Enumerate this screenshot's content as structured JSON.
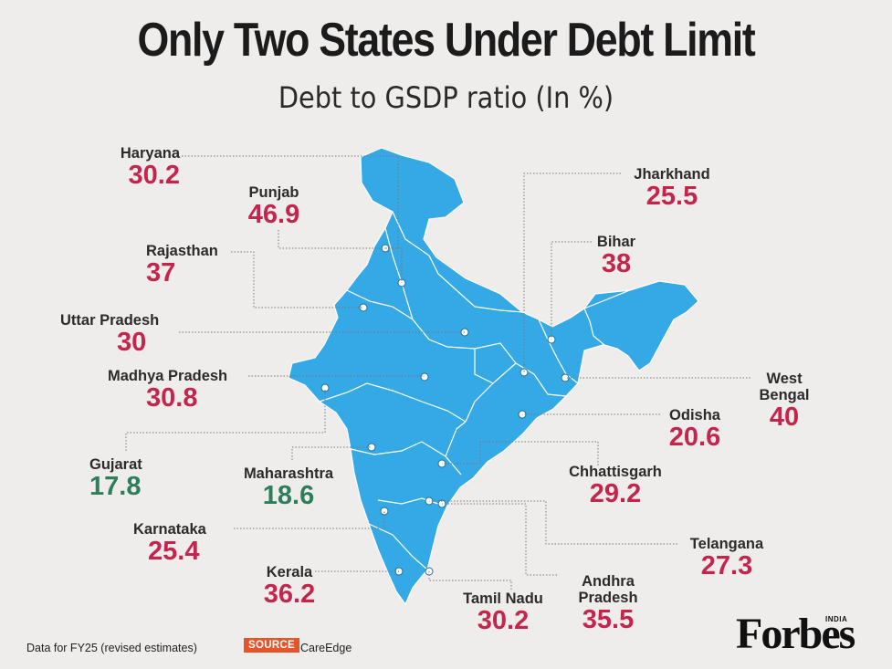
{
  "title": "Only Two States Under Debt Limit",
  "subtitle": "Debt to GSDP ratio (In %)",
  "colors": {
    "over": "#c4254d",
    "under": "#2e7d5b",
    "map_fill": "#35a9e6",
    "background": "#efedec"
  },
  "states": [
    {
      "name": "Haryana",
      "value": "30.2",
      "status": "over"
    },
    {
      "name": "Punjab",
      "value": "46.9",
      "status": "over"
    },
    {
      "name": "Rajasthan",
      "value": "37",
      "status": "over"
    },
    {
      "name": "Uttar Pradesh",
      "value": "30",
      "status": "over"
    },
    {
      "name": "Madhya Pradesh",
      "value": "30.8",
      "status": "over"
    },
    {
      "name": "Gujarat",
      "value": "17.8",
      "status": "under"
    },
    {
      "name": "Maharashtra",
      "value": "18.6",
      "status": "under"
    },
    {
      "name": "Karnataka",
      "value": "25.4",
      "status": "over"
    },
    {
      "name": "Kerala",
      "value": "36.2",
      "status": "over"
    },
    {
      "name": "Tamil Nadu",
      "value": "30.2",
      "status": "over"
    },
    {
      "name_lines": [
        "Andhra",
        "Pradesh"
      ],
      "value": "35.5",
      "status": "over"
    },
    {
      "name": "Telangana",
      "value": "27.3",
      "status": "over"
    },
    {
      "name": "Chhattisgarh",
      "value": "29.2",
      "status": "over"
    },
    {
      "name": "Odisha",
      "value": "20.6",
      "status": "over"
    },
    {
      "name_lines": [
        "West",
        "Bengal"
      ],
      "value": "40",
      "status": "over"
    },
    {
      "name": "Bihar",
      "value": "38",
      "status": "over"
    },
    {
      "name": "Jharkhand",
      "value": "25.5",
      "status": "over"
    }
  ],
  "footer": {
    "note": "Data for FY25 (revised estimates)",
    "source_tag": "SOURCE",
    "source_name": "CareEdge"
  },
  "logo": {
    "text": "Forbes",
    "edition": "INDIA"
  }
}
